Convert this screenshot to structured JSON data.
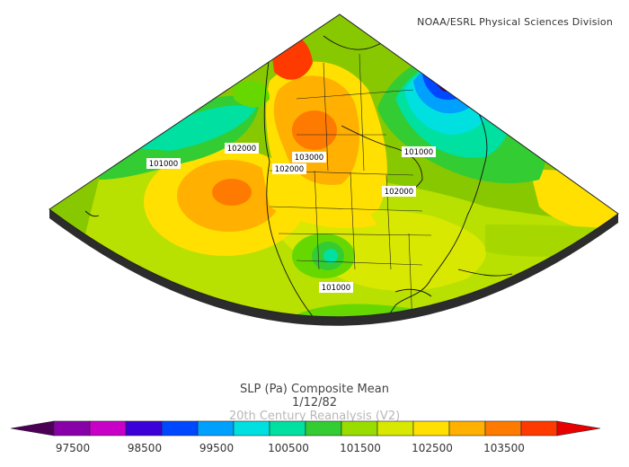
{
  "credit": "NOAA/ESRL Physical Sciences Division",
  "title": {
    "line1": "SLP (Pa) Composite Mean",
    "line2": "1/12/82",
    "line3": "20th Century Reanalysis (V2)"
  },
  "contour_labels": [
    {
      "text": "102000",
      "id": "label-102000-a"
    },
    {
      "text": "101000",
      "id": "label-101000-a"
    },
    {
      "text": "103000",
      "id": "label-103000"
    },
    {
      "text": "102000",
      "id": "label-102000-b"
    },
    {
      "text": "101000",
      "id": "label-101000-b"
    },
    {
      "text": "102000",
      "id": "label-102000-c"
    },
    {
      "text": "101000",
      "id": "label-101000-c"
    }
  ],
  "colorbar": {
    "labels": [
      "97500",
      "98500",
      "99500",
      "100500",
      "101500",
      "102500",
      "103500"
    ],
    "colors": [
      "#4b0055",
      "#8800a8",
      "#c800c8",
      "#3c00d8",
      "#0048ff",
      "#00a0ff",
      "#00e0e0",
      "#00e0a0",
      "#33cc33",
      "#99dd00",
      "#d8e800",
      "#ffe000",
      "#ffb000",
      "#ff7a00",
      "#ff3a00",
      "#e80000"
    ]
  }
}
